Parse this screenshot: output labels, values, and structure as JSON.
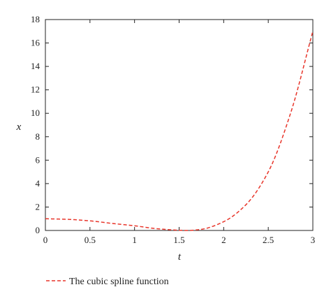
{
  "chart_data": {
    "type": "line",
    "xlabel": "t",
    "ylabel": "x",
    "xlim": [
      0,
      3
    ],
    "ylim": [
      0,
      18
    ],
    "xticks": [
      0,
      0.5,
      1,
      1.5,
      2,
      2.5,
      3
    ],
    "xtick_labels": [
      "0",
      "0.5",
      "1",
      "1.5",
      "2",
      "2.5",
      "3"
    ],
    "yticks": [
      0,
      2,
      4,
      6,
      8,
      10,
      12,
      14,
      16,
      18
    ],
    "ytick_labels": [
      "0",
      "2",
      "4",
      "6",
      "8",
      "10",
      "12",
      "14",
      "16",
      "18"
    ],
    "grid": false,
    "legend_position": "bottom-left",
    "series": [
      {
        "name": "The cubic spline function",
        "color": "#e8352a",
        "style": "dashed",
        "x": [
          0,
          0.25,
          0.5,
          0.75,
          1.0,
          1.25,
          1.5,
          1.6,
          1.75,
          2.0,
          2.25,
          2.5,
          2.75,
          3.0
        ],
        "y": [
          1.0,
          0.95,
          0.82,
          0.6,
          0.4,
          0.15,
          0.02,
          0.0,
          0.1,
          0.75,
          2.2,
          5.0,
          10.0,
          17.0
        ]
      }
    ]
  }
}
